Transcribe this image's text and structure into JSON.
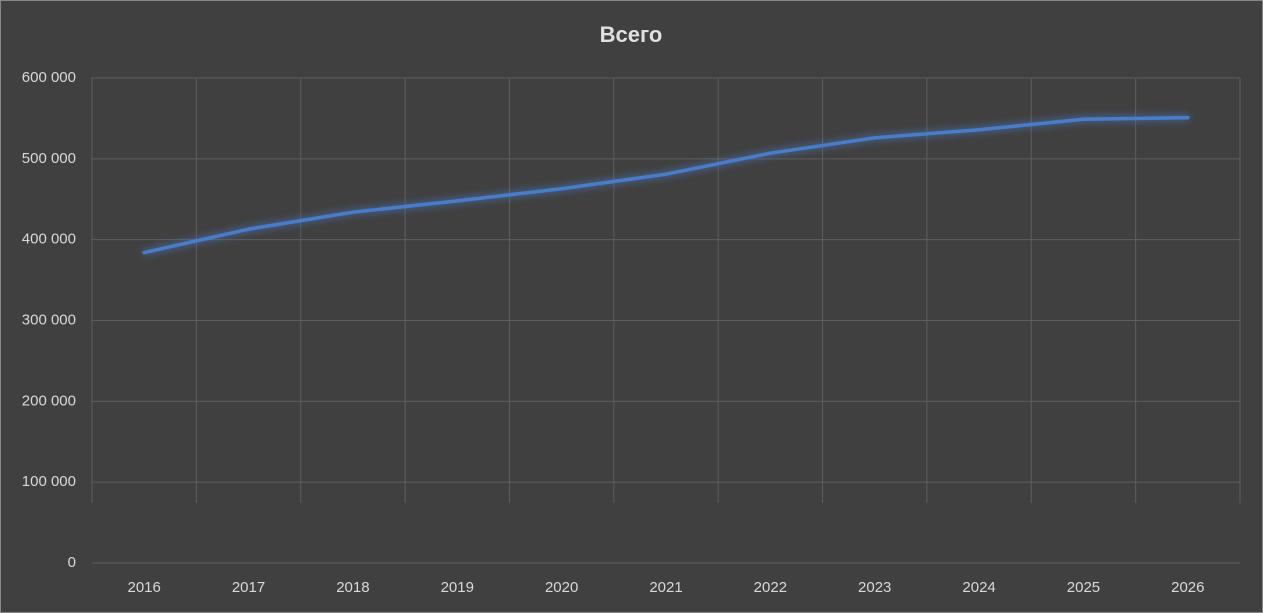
{
  "chart_data": {
    "type": "line",
    "title": "Всего",
    "categories": [
      "2016",
      "2017",
      "2018",
      "2019",
      "2020",
      "2021",
      "2022",
      "2023",
      "2024",
      "2025",
      "2026"
    ],
    "values": [
      384000,
      413000,
      434000,
      448000,
      463000,
      481000,
      507000,
      526000,
      536000,
      549000,
      551000
    ],
    "color": "#4a7dc9",
    "ylim": [
      0,
      600000
    ],
    "yticks": [
      0,
      {
        "value": 100000,
        "label": "100 000"
      },
      {
        "value": 200000,
        "label": "200 000"
      },
      {
        "value": 300000,
        "label": "300 000"
      },
      {
        "value": 400000,
        "label": "400 000"
      },
      {
        "value": 500000,
        "label": "500 000"
      },
      {
        "value": 600000,
        "label": "600 000"
      }
    ],
    "grid": true
  }
}
